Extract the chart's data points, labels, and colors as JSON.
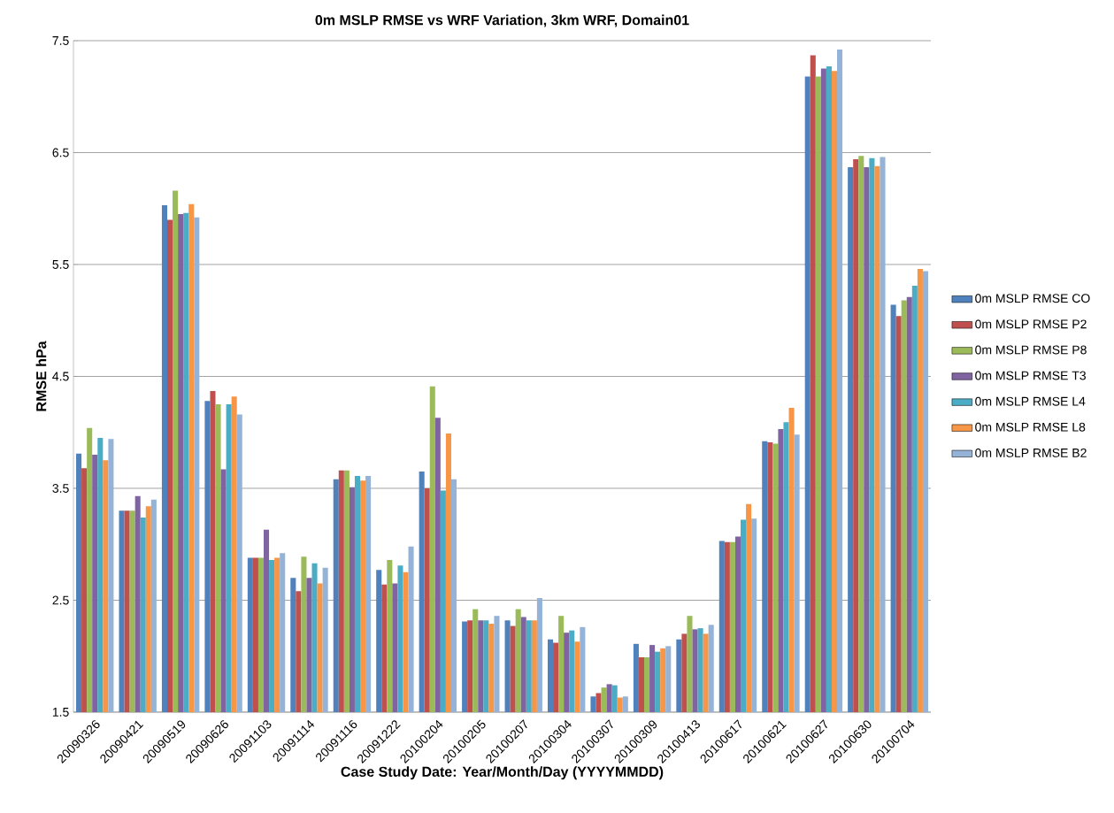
{
  "chart_data": {
    "type": "bar",
    "title": "0m MSLP RMSE  vs WRF Variation, 3km WRF, Domain01",
    "xlabel": "Case Study Date: Year/Month/Day (YYYYMMDD)",
    "ylabel": "RMSE hPa",
    "categories": [
      "20090326",
      "20090421",
      "20090519",
      "20090626",
      "20091103",
      "20091114",
      "20091116",
      "20091222",
      "20100204",
      "20100205",
      "20100207",
      "20100304",
      "20100307",
      "20100309",
      "20100413",
      "20100617",
      "20100621",
      "20100627",
      "20100630",
      "20100704"
    ],
    "series": [
      {
        "name": "0m MSLP RMSE CO",
        "color": "#4f81bd",
        "values": [
          3.81,
          3.3,
          6.03,
          4.28,
          2.88,
          2.7,
          3.58,
          2.77,
          3.65,
          2.31,
          2.32,
          2.15,
          1.64,
          2.11,
          2.15,
          3.03,
          3.92,
          7.18,
          6.37,
          5.14
        ]
      },
      {
        "name": "0m MSLP RMSE P2",
        "color": "#c0504d",
        "values": [
          3.68,
          3.3,
          5.9,
          4.37,
          2.88,
          2.58,
          3.66,
          2.64,
          3.5,
          2.32,
          2.27,
          2.12,
          1.67,
          1.99,
          2.2,
          3.02,
          3.91,
          7.37,
          6.44,
          5.04
        ]
      },
      {
        "name": "0m MSLP RMSE P8",
        "color": "#9bbb59",
        "values": [
          4.04,
          3.3,
          6.16,
          4.25,
          2.88,
          2.89,
          3.66,
          2.86,
          4.41,
          2.42,
          2.42,
          2.36,
          1.72,
          1.99,
          2.36,
          3.02,
          3.9,
          7.18,
          6.47,
          5.18
        ]
      },
      {
        "name": "0m MSLP RMSE T3",
        "color": "#8064a2",
        "values": [
          3.8,
          3.43,
          5.95,
          3.67,
          3.13,
          2.7,
          3.51,
          2.65,
          4.13,
          2.32,
          2.35,
          2.21,
          1.75,
          2.1,
          2.24,
          3.07,
          4.03,
          7.25,
          6.37,
          5.21
        ]
      },
      {
        "name": "0m MSLP RMSE L4",
        "color": "#4bacc6",
        "values": [
          3.95,
          3.24,
          5.96,
          4.25,
          2.86,
          2.83,
          3.61,
          2.81,
          3.48,
          2.32,
          2.32,
          2.23,
          1.74,
          2.04,
          2.25,
          3.22,
          4.09,
          7.27,
          6.45,
          5.31
        ]
      },
      {
        "name": "0m MSLP RMSE L8",
        "color": "#f79646",
        "values": [
          3.75,
          3.34,
          6.04,
          4.32,
          2.88,
          2.65,
          3.57,
          2.75,
          3.99,
          2.29,
          2.32,
          2.13,
          1.63,
          2.07,
          2.2,
          3.36,
          4.22,
          7.23,
          6.38,
          5.46
        ]
      },
      {
        "name": "0m MSLP RMSE B2",
        "color": "#95b3d7",
        "values": [
          3.94,
          3.4,
          5.92,
          4.16,
          2.92,
          2.79,
          3.61,
          2.98,
          3.58,
          2.36,
          2.52,
          2.26,
          1.64,
          2.09,
          2.28,
          3.23,
          3.98,
          7.42,
          6.46,
          5.44
        ]
      }
    ],
    "ylim": [
      1.5,
      7.5
    ],
    "yticks": [
      1.5,
      2.5,
      3.5,
      4.5,
      5.5,
      6.5,
      7.5
    ],
    "grid": "y",
    "legend": "right"
  }
}
